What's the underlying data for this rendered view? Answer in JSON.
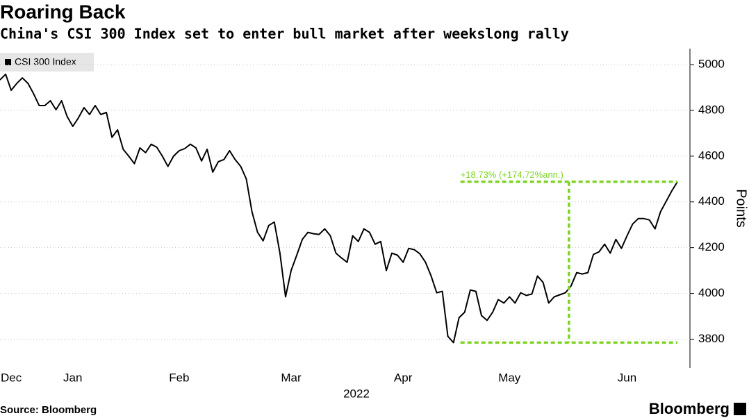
{
  "chart_data": {
    "type": "line",
    "title": "Roaring Back",
    "subtitle": "China's CSI 300 Index set to enter bull market after weekslong rally",
    "y_label": "Points",
    "year_label": "2022",
    "source": "Source: Bloomberg",
    "brand": "Bloomberg",
    "annotation": "+18.73% (+174.72%ann.)",
    "annotation_color": "#7ed321",
    "grid": true,
    "legend": "top-left",
    "ylim": [
      3680,
      5070
    ],
    "yticks": [
      3800,
      4000,
      4200,
      4400,
      4600,
      4800,
      5000
    ],
    "categories": [
      null,
      null,
      "Dec",
      null,
      null,
      null,
      null,
      null,
      null,
      null,
      null,
      null,
      null,
      "Jan",
      null,
      null,
      null,
      null,
      null,
      null,
      null,
      null,
      null,
      null,
      null,
      null,
      null,
      null,
      null,
      null,
      null,
      null,
      "Feb",
      null,
      null,
      null,
      null,
      null,
      null,
      null,
      null,
      null,
      null,
      null,
      null,
      null,
      null,
      null,
      null,
      null,
      null,
      null,
      "Mar",
      null,
      null,
      null,
      null,
      null,
      null,
      null,
      null,
      null,
      null,
      null,
      null,
      null,
      null,
      null,
      null,
      null,
      null,
      null,
      "Apr",
      null,
      null,
      null,
      null,
      null,
      null,
      null,
      null,
      null,
      null,
      null,
      null,
      null,
      null,
      null,
      null,
      null,
      null,
      "May",
      null,
      null,
      null,
      null,
      null,
      null,
      null,
      null,
      null,
      null,
      null,
      null,
      null,
      null,
      null,
      null,
      null,
      null,
      null,
      null,
      "Jun",
      null,
      null,
      null,
      null,
      null,
      null,
      null,
      null,
      null
    ],
    "series": [
      {
        "name": "CSI 300 Index",
        "color": "#000000",
        "values": [
          4933,
          4958,
          4888,
          4918,
          4942,
          4918,
          4873,
          4821,
          4821,
          4842,
          4803,
          4842,
          4773,
          4730,
          4767,
          4812,
          4782,
          4821,
          4782,
          4791,
          4682,
          4715,
          4630,
          4600,
          4567,
          4636,
          4615,
          4652,
          4639,
          4600,
          4555,
          4600,
          4624,
          4633,
          4652,
          4636,
          4579,
          4630,
          4530,
          4576,
          4585,
          4624,
          4585,
          4555,
          4500,
          4358,
          4267,
          4230,
          4297,
          4312,
          4176,
          3985,
          4100,
          4167,
          4236,
          4267,
          4261,
          4258,
          4282,
          4252,
          4176,
          4155,
          4136,
          4252,
          4227,
          4282,
          4267,
          4215,
          4227,
          4100,
          4176,
          4167,
          4136,
          4197,
          4191,
          4173,
          4136,
          4076,
          4003,
          4009,
          3812,
          3785,
          3894,
          3918,
          4015,
          4009,
          3903,
          3882,
          3918,
          3973,
          3958,
          3985,
          3958,
          4003,
          3991,
          3997,
          4076,
          4048,
          3958,
          3985,
          3994,
          4003,
          4033,
          4091,
          4085,
          4091,
          4170,
          4182,
          4215,
          4176,
          4236,
          4197,
          4252,
          4303,
          4327,
          4327,
          4321,
          4282,
          4358,
          4403,
          4448,
          4488
        ]
      }
    ]
  }
}
